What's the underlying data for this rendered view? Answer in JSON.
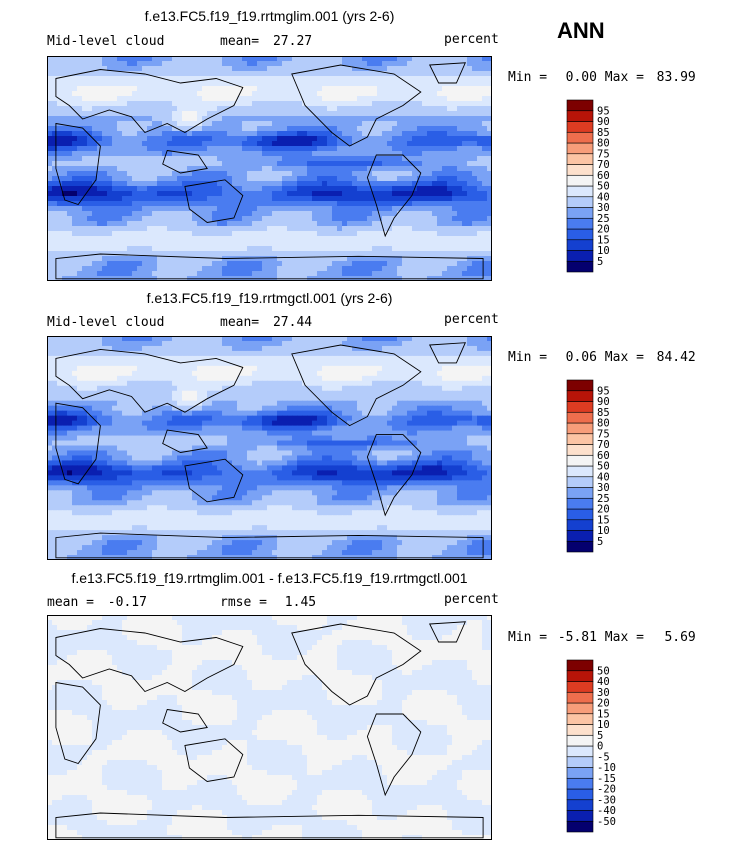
{
  "season_label": "ANN",
  "chart_data": [
    {
      "type": "heatmap",
      "title": "f.e13.FC5.f19_f19.rrtmglim.001 (yrs 2-6)",
      "variable": "Mid-level cloud",
      "stat_label": "mean=",
      "stat_value": "27.27",
      "units": "percent",
      "min_label": "Min =",
      "min_value": "0.00",
      "max_label": "Max =",
      "max_value": "83.99",
      "levels": [
        5,
        10,
        15,
        20,
        25,
        30,
        40,
        50,
        60,
        70,
        75,
        80,
        85,
        90,
        95
      ],
      "colors": [
        "#04006e",
        "#0a1fb0",
        "#1440d0",
        "#2a5ee6",
        "#4a7cf0",
        "#7aa2f5",
        "#b4ccfa",
        "#dbe8fd",
        "#f4f4f4",
        "#fde0cc",
        "#fcc4a4",
        "#f79d7a",
        "#ee6e4d",
        "#dd3c22",
        "#b81408",
        "#7d0000"
      ]
    },
    {
      "type": "heatmap",
      "title": "f.e13.FC5.f19_f19.rrtmgctl.001 (yrs 2-6)",
      "variable": "Mid-level cloud",
      "stat_label": "mean=",
      "stat_value": "27.44",
      "units": "percent",
      "min_label": "Min =",
      "min_value": "0.06",
      "max_label": "Max =",
      "max_value": "84.42",
      "levels": [
        5,
        10,
        15,
        20,
        25,
        30,
        40,
        50,
        60,
        70,
        75,
        80,
        85,
        90,
        95
      ],
      "colors": [
        "#04006e",
        "#0a1fb0",
        "#1440d0",
        "#2a5ee6",
        "#4a7cf0",
        "#7aa2f5",
        "#b4ccfa",
        "#dbe8fd",
        "#f4f4f4",
        "#fde0cc",
        "#fcc4a4",
        "#f79d7a",
        "#ee6e4d",
        "#dd3c22",
        "#b81408",
        "#7d0000"
      ]
    },
    {
      "type": "heatmap",
      "title": "f.e13.FC5.f19_f19.rrtmglim.001 - f.e13.FC5.f19_f19.rrtmgctl.001",
      "stat_label": "mean =",
      "stat_value": "-0.17",
      "rmse_label": "rmse =",
      "rmse_value": "1.45",
      "units": "percent",
      "min_label": "Min =",
      "min_value": "-5.81",
      "max_label": "Max =",
      "max_value": "5.69",
      "levels": [
        -50,
        -40,
        -30,
        -20,
        -15,
        -10,
        -5,
        0,
        5,
        10,
        15,
        20,
        30,
        40,
        50
      ],
      "colors": [
        "#04006e",
        "#0a1fb0",
        "#1440d0",
        "#2a5ee6",
        "#4a7cf0",
        "#7aa2f5",
        "#b4ccfa",
        "#dbe8fd",
        "#f4f4f4",
        "#fde0cc",
        "#fcc4a4",
        "#f79d7a",
        "#ee6e4d",
        "#dd3c22",
        "#b81408",
        "#7d0000"
      ]
    }
  ]
}
